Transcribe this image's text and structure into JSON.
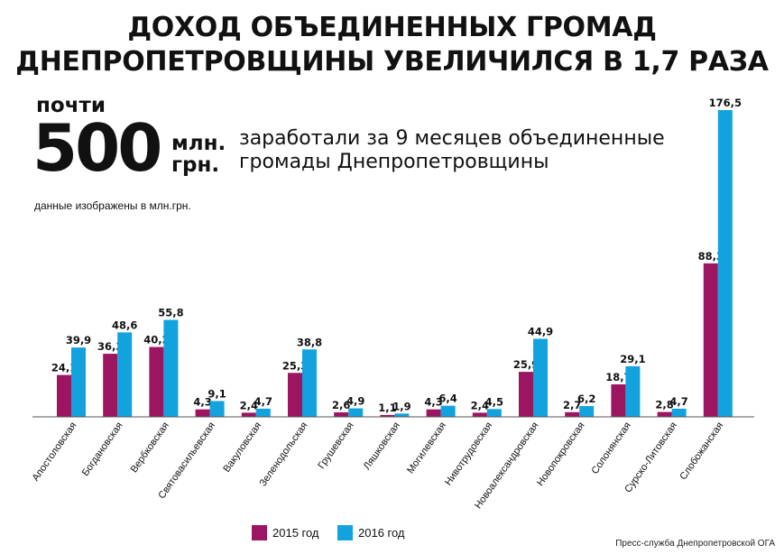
{
  "header": {
    "title_line1": "ДОХОД ОБЪЕДИНЕННЫХ ГРОМАД",
    "title_line2": "ДНЕПРОПЕТРОВЩИНЫ УВЕЛИЧИЛСЯ В 1,7 РАЗА"
  },
  "highlight": {
    "almost": "почти",
    "number": "500",
    "unit_line1": "млн.",
    "unit_line2": "грн.",
    "desc_line1": "заработали за 9 месяцев объединенные",
    "desc_line2": "громады Днепропетровщины"
  },
  "note": "данные изображены в млн.грн.",
  "source": "Пресс-служба Днепропетровской ОГА",
  "colors": {
    "s2015": "#9c1560",
    "s2016": "#12a3df"
  },
  "chart_data": {
    "type": "bar",
    "categories": [
      "Апостоловская",
      "Богдановская",
      "Вербковская",
      "Святовасильевская",
      "Вакуловская",
      "Зеленодольская",
      "Грушевская",
      "Ляшковская",
      "Могилевская",
      "Нивотрудовская",
      "Новоалександровская",
      "Новопокровская",
      "Солонянская",
      "Сурско-Литовская",
      "Слобожанская"
    ],
    "series": [
      {
        "name": "2015 год",
        "values": [
          24.1,
          36.3,
          40.2,
          4.3,
          2.4,
          25.3,
          2.6,
          1.1,
          4.3,
          2.4,
          25.9,
          2.7,
          18.7,
          2.8,
          88.3
        ],
        "labels": [
          "24,1",
          "36,3",
          "40,2",
          "4,3",
          "2,4",
          "25,3",
          "2,6",
          "1,1",
          "4,3",
          "2,4",
          "25,9",
          "2,7",
          "18,7",
          "2,8",
          "88,3"
        ]
      },
      {
        "name": "2016 год",
        "values": [
          39.9,
          48.6,
          55.8,
          9.1,
          4.7,
          38.8,
          4.9,
          1.9,
          6.4,
          4.5,
          44.9,
          6.2,
          29.1,
          4.7,
          176.5
        ],
        "labels": [
          "39,9",
          "48,6",
          "55,8",
          "9,1",
          "4,7",
          "38,8",
          "4,9",
          "1,9",
          "6,4",
          "4,5",
          "44,9",
          "6,2",
          "29,1",
          "4,7",
          "176,5"
        ]
      }
    ],
    "ylim": [
      0,
      176.5
    ],
    "grid": false,
    "legend_position": "bottom"
  }
}
